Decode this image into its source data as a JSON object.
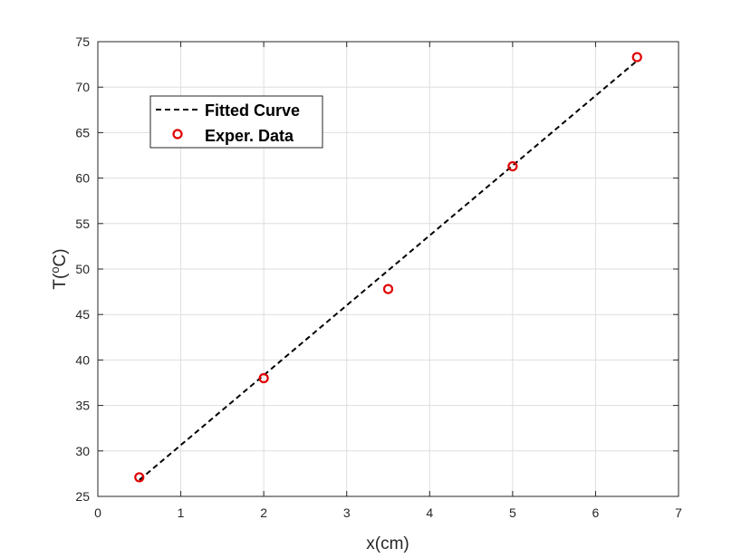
{
  "chart_data": {
    "type": "scatter",
    "title": "",
    "xlabel": "x(cm)",
    "ylabel_prefix": "T(",
    "ylabel_superscript": "o",
    "ylabel_suffix": "C)",
    "xlim": [
      0,
      7
    ],
    "ylim": [
      25,
      75
    ],
    "xticks": [
      0,
      1,
      2,
      3,
      4,
      5,
      6,
      7
    ],
    "yticks": [
      25,
      30,
      35,
      40,
      45,
      50,
      55,
      60,
      65,
      70,
      75
    ],
    "grid": true,
    "legend_position": "top-left",
    "series": [
      {
        "name": "Fitted Curve",
        "kind": "line",
        "style": "dashed",
        "color": "#000000",
        "x": [
          0.5,
          6.5
        ],
        "y": [
          26.8,
          72.9
        ]
      },
      {
        "name": "Exper. Data",
        "kind": "marker",
        "marker": "circle",
        "color": "#e00000",
        "x": [
          0.5,
          2.0,
          3.5,
          5.0,
          6.5
        ],
        "y": [
          27.1,
          38.0,
          47.8,
          61.3,
          73.3
        ]
      }
    ]
  }
}
